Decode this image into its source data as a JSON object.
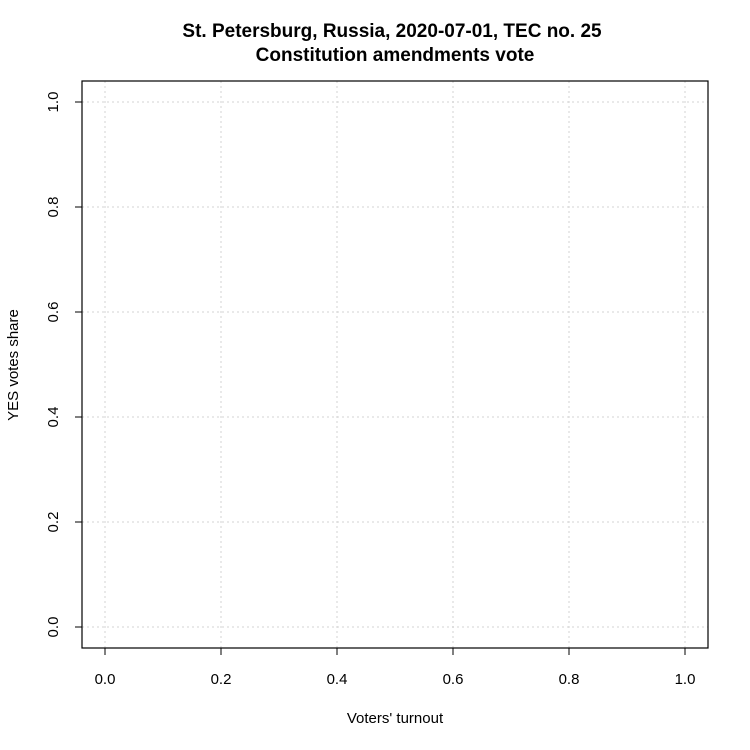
{
  "chart_data": {
    "type": "scatter",
    "title_line1": "St. Petersburg, Russia, 2020-07-01, TEC no. 25",
    "title_line2": "Constitution amendments vote",
    "xlabel": "Voters' turnout",
    "ylabel": "YES votes share",
    "xlim": [
      0,
      1
    ],
    "ylim": [
      0,
      1
    ],
    "x_ticks": [
      "0.0",
      "0.2",
      "0.4",
      "0.6",
      "0.8",
      "1.0"
    ],
    "y_ticks": [
      "0.0",
      "0.2",
      "0.4",
      "0.6",
      "0.8",
      "1.0"
    ],
    "grid": true,
    "points": []
  }
}
